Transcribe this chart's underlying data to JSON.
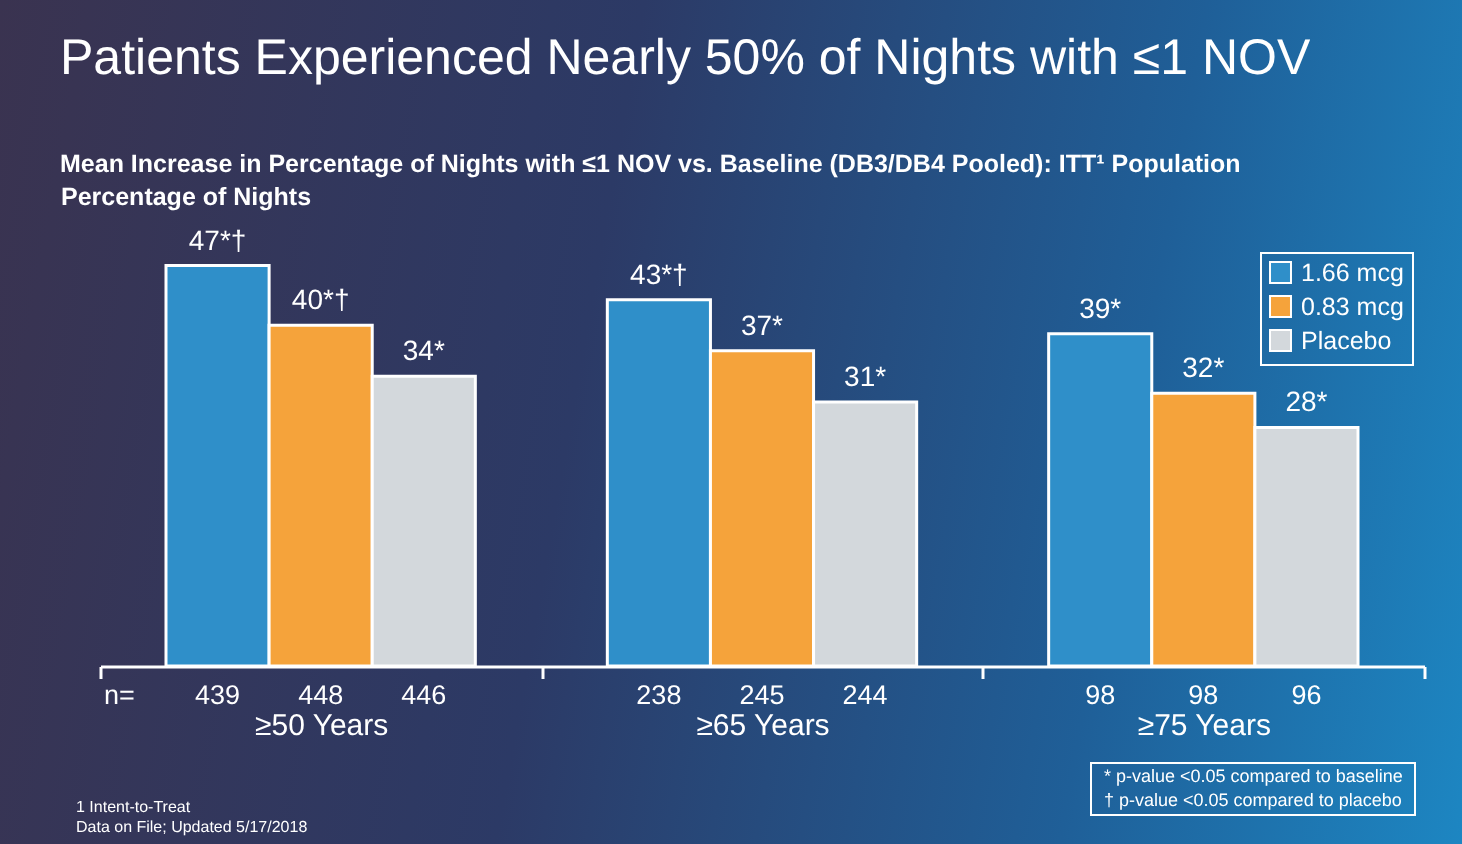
{
  "chart_data": {
    "type": "bar",
    "title": "Patients Experienced Nearly 50% of Nights with ≤1 NOV",
    "subtitle": "Mean Increase in Percentage of Nights with ≤1 NOV vs. Baseline (DB3/DB4 Pooled): ITT¹ Population",
    "ylabel": "Percentage of Nights",
    "categories": [
      "≥50 Years",
      "≥65 Years",
      "≥75 Years"
    ],
    "series": [
      {
        "name": "1.66 mcg",
        "color": "#2f8fc9",
        "values": [
          47,
          43,
          39
        ],
        "value_labels": [
          "47*†",
          "43*†",
          "39*"
        ]
      },
      {
        "name": "0.83 mcg",
        "color": "#f5a33b",
        "values": [
          40,
          37,
          32
        ],
        "value_labels": [
          "40*†",
          "37*",
          "32*"
        ]
      },
      {
        "name": "Placebo",
        "color": "#d3d8dc",
        "values": [
          34,
          31,
          28
        ],
        "value_labels": [
          "34*",
          "31*",
          "28*"
        ]
      }
    ],
    "legend": "top right",
    "grid": false,
    "tick_labels": "x",
    "annotations": [
      "n=",
      "439",
      "448",
      "446",
      "238",
      "245",
      "244",
      "98",
      "98",
      "96",
      "* p-value <0.05 compared to baseline",
      "† p-value <0.05 compared to placebo",
      "1 Intent-to-Treat",
      "Data on File; Updated 5/17/2018"
    ]
  }
}
